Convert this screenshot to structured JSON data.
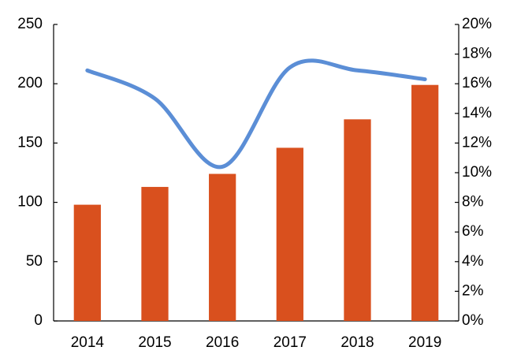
{
  "chart_data": {
    "type": "bar",
    "categories": [
      "2014",
      "2015",
      "2016",
      "2017",
      "2018",
      "2019"
    ],
    "series": [
      {
        "type": "bar",
        "color": "#d9501e",
        "values": [
          98,
          113,
          124,
          146,
          170,
          199
        ]
      },
      {
        "type": "line",
        "color": "#5b8ed6",
        "axis": "y2",
        "values": [
          16.9,
          15.0,
          10.4,
          17.1,
          16.9,
          16.3
        ]
      }
    ],
    "ylim": [
      0,
      250
    ],
    "yticks": [
      0,
      50,
      100,
      150,
      200,
      250
    ],
    "y2lim": [
      0,
      20
    ],
    "y2ticks": [
      {
        "value": 0,
        "label": "0%"
      },
      {
        "value": 2,
        "label": "2%"
      },
      {
        "value": 4,
        "label": "4%"
      },
      {
        "value": 6,
        "label": "6%"
      },
      {
        "value": 8,
        "label": "8%"
      },
      {
        "value": 10,
        "label": "10%"
      },
      {
        "value": 12,
        "label": "12%"
      },
      {
        "value": 14,
        "label": "14%"
      },
      {
        "value": 16,
        "label": "16%"
      },
      {
        "value": 18,
        "label": "18%"
      },
      {
        "value": 20,
        "label": "20%"
      }
    ],
    "grid": false
  }
}
